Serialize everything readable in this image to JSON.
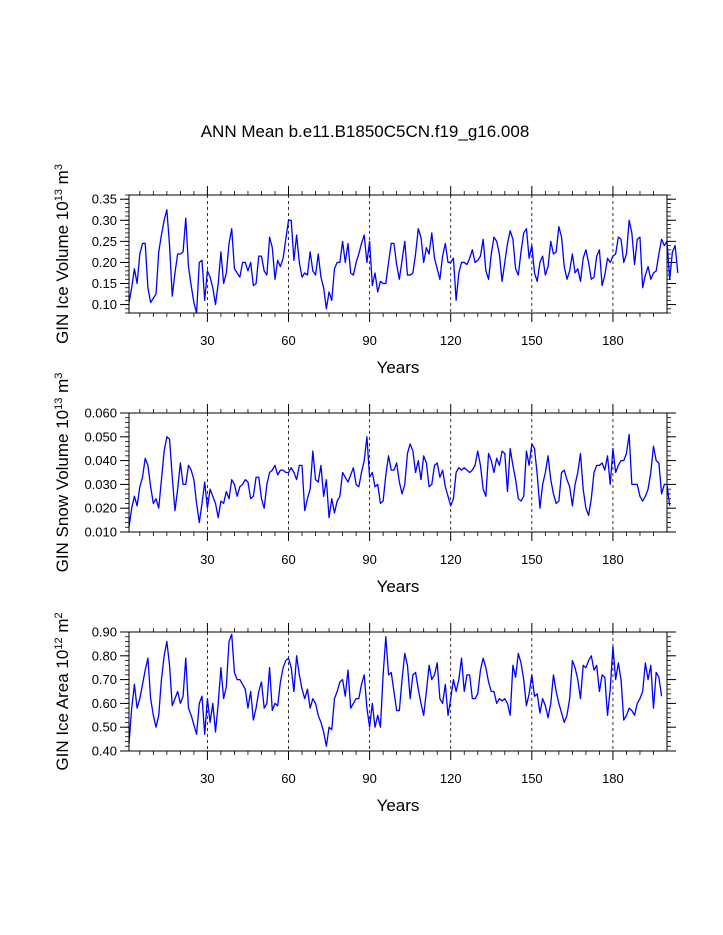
{
  "title": "ANN Mean b.e11.B1850C5CN.f19_g16.008",
  "line_color": "#0000ff",
  "chart_data": [
    {
      "type": "line",
      "ylabel": "GIN Ice Volume",
      "ylabel_exp": "13",
      "ylabel_unit": "m",
      "ylabel_unit_exp": "3",
      "xlabel": "Years",
      "xlim": [
        1,
        200
      ],
      "ylim": [
        0.08,
        0.36
      ],
      "xticks": [
        30,
        60,
        90,
        120,
        150,
        180
      ],
      "xtick_labels": [
        "30",
        "60",
        "90",
        "120",
        "150",
        "180"
      ],
      "yticks": [
        0.1,
        0.15,
        0.2,
        0.25,
        0.3,
        0.35
      ],
      "ytick_labels": [
        "0.10",
        "0.15",
        "0.20",
        "0.25",
        "0.30",
        "0.35"
      ],
      "vlines": [
        30,
        60,
        90,
        120,
        150,
        180
      ],
      "series": [
        {
          "name": "GIN Ice Volume",
          "x_start": 1,
          "values": [
            0.105,
            0.14,
            0.185,
            0.15,
            0.22,
            0.245,
            0.245,
            0.14,
            0.105,
            0.115,
            0.125,
            0.225,
            0.265,
            0.3,
            0.325,
            0.24,
            0.12,
            0.175,
            0.22,
            0.22,
            0.225,
            0.305,
            0.19,
            0.145,
            0.105,
            0.08,
            0.2,
            0.205,
            0.11,
            0.18,
            0.165,
            0.14,
            0.1,
            0.15,
            0.225,
            0.15,
            0.175,
            0.245,
            0.28,
            0.185,
            0.175,
            0.165,
            0.2,
            0.2,
            0.18,
            0.2,
            0.145,
            0.15,
            0.215,
            0.215,
            0.18,
            0.17,
            0.26,
            0.235,
            0.16,
            0.205,
            0.19,
            0.21,
            0.255,
            0.3,
            0.3,
            0.205,
            0.265,
            0.2,
            0.165,
            0.175,
            0.17,
            0.225,
            0.18,
            0.17,
            0.22,
            0.165,
            0.14,
            0.09,
            0.13,
            0.11,
            0.185,
            0.2,
            0.2,
            0.25,
            0.2,
            0.245,
            0.175,
            0.17,
            0.2,
            0.22,
            0.245,
            0.265,
            0.2,
            0.25,
            0.145,
            0.175,
            0.13,
            0.155,
            0.15,
            0.15,
            0.2,
            0.245,
            0.245,
            0.195,
            0.16,
            0.205,
            0.25,
            0.17,
            0.17,
            0.175,
            0.22,
            0.28,
            0.26,
            0.2,
            0.235,
            0.22,
            0.27,
            0.21,
            0.185,
            0.16,
            0.215,
            0.245,
            0.2,
            0.2,
            0.21,
            0.11,
            0.175,
            0.2,
            0.2,
            0.195,
            0.21,
            0.23,
            0.2,
            0.205,
            0.215,
            0.255,
            0.18,
            0.16,
            0.22,
            0.26,
            0.25,
            0.22,
            0.155,
            0.2,
            0.245,
            0.275,
            0.255,
            0.185,
            0.17,
            0.225,
            0.27,
            0.28,
            0.21,
            0.24,
            0.175,
            0.155,
            0.2,
            0.215,
            0.17,
            0.19,
            0.25,
            0.22,
            0.225,
            0.285,
            0.26,
            0.19,
            0.16,
            0.18,
            0.22,
            0.175,
            0.185,
            0.155,
            0.21,
            0.23,
            0.2,
            0.16,
            0.165,
            0.215,
            0.23,
            0.145,
            0.17,
            0.21,
            0.2,
            0.215,
            0.22,
            0.26,
            0.255,
            0.2,
            0.22,
            0.3,
            0.27,
            0.195,
            0.255,
            0.26,
            0.14,
            0.17,
            0.19,
            0.16,
            0.175,
            0.18,
            0.22,
            0.255,
            0.24,
            0.25,
            0.16,
            0.225,
            0.24,
            0.175
          ]
        }
      ]
    },
    {
      "type": "line",
      "ylabel": "GIN Snow Volume",
      "ylabel_exp": "13",
      "ylabel_unit": "m",
      "ylabel_unit_exp": "3",
      "xlabel": "Years",
      "xlim": [
        1,
        200
      ],
      "ylim": [
        0.01,
        0.06
      ],
      "xticks": [
        30,
        60,
        90,
        120,
        150,
        180
      ],
      "xtick_labels": [
        "30",
        "60",
        "90",
        "120",
        "150",
        "180"
      ],
      "yticks": [
        0.01,
        0.02,
        0.03,
        0.04,
        0.05,
        0.06
      ],
      "ytick_labels": [
        "0.010",
        "0.020",
        "0.030",
        "0.040",
        "0.050",
        "0.060"
      ],
      "vlines": [
        30,
        60,
        90,
        120,
        150,
        180
      ],
      "series": [
        {
          "name": "GIN Snow Volume",
          "x_start": 1,
          "values": [
            0.012,
            0.02,
            0.025,
            0.021,
            0.029,
            0.033,
            0.041,
            0.038,
            0.029,
            0.022,
            0.024,
            0.02,
            0.032,
            0.044,
            0.05,
            0.049,
            0.033,
            0.019,
            0.028,
            0.039,
            0.03,
            0.03,
            0.038,
            0.036,
            0.032,
            0.022,
            0.014,
            0.022,
            0.031,
            0.02,
            0.028,
            0.025,
            0.022,
            0.016,
            0.023,
            0.022,
            0.027,
            0.024,
            0.032,
            0.03,
            0.025,
            0.029,
            0.03,
            0.032,
            0.031,
            0.024,
            0.025,
            0.033,
            0.033,
            0.024,
            0.02,
            0.03,
            0.035,
            0.036,
            0.038,
            0.034,
            0.036,
            0.036,
            0.035,
            0.035,
            0.037,
            0.035,
            0.032,
            0.038,
            0.038,
            0.019,
            0.024,
            0.028,
            0.044,
            0.032,
            0.031,
            0.038,
            0.025,
            0.032,
            0.016,
            0.024,
            0.018,
            0.023,
            0.025,
            0.035,
            0.033,
            0.031,
            0.034,
            0.037,
            0.03,
            0.029,
            0.035,
            0.04,
            0.05,
            0.033,
            0.035,
            0.029,
            0.03,
            0.022,
            0.023,
            0.034,
            0.042,
            0.036,
            0.036,
            0.039,
            0.031,
            0.026,
            0.03,
            0.043,
            0.047,
            0.044,
            0.035,
            0.04,
            0.032,
            0.042,
            0.039,
            0.029,
            0.03,
            0.038,
            0.039,
            0.033,
            0.036,
            0.029,
            0.025,
            0.021,
            0.024,
            0.035,
            0.037,
            0.036,
            0.037,
            0.036,
            0.035,
            0.036,
            0.038,
            0.044,
            0.038,
            0.028,
            0.025,
            0.043,
            0.04,
            0.035,
            0.041,
            0.038,
            0.044,
            0.043,
            0.027,
            0.045,
            0.038,
            0.032,
            0.024,
            0.023,
            0.025,
            0.044,
            0.038,
            0.047,
            0.045,
            0.034,
            0.02,
            0.03,
            0.035,
            0.042,
            0.032,
            0.026,
            0.022,
            0.023,
            0.035,
            0.036,
            0.032,
            0.029,
            0.021,
            0.03,
            0.035,
            0.043,
            0.028,
            0.02,
            0.017,
            0.024,
            0.035,
            0.038,
            0.038,
            0.039,
            0.036,
            0.042,
            0.03,
            0.045,
            0.035,
            0.038,
            0.04,
            0.04,
            0.043,
            0.051,
            0.03,
            0.03,
            0.03,
            0.025,
            0.023,
            0.025,
            0.028,
            0.035,
            0.046,
            0.04,
            0.039,
            0.026,
            0.03,
            0.03,
            0.021
          ]
        }
      ]
    },
    {
      "type": "line",
      "ylabel": "GIN Ice Area",
      "ylabel_exp": "12",
      "ylabel_unit": "m",
      "ylabel_unit_exp": "2",
      "xlabel": "Years",
      "xlim": [
        1,
        200
      ],
      "ylim": [
        0.4,
        0.9
      ],
      "xticks": [
        30,
        60,
        90,
        120,
        150,
        180
      ],
      "xtick_labels": [
        "30",
        "60",
        "90",
        "120",
        "150",
        "180"
      ],
      "yticks": [
        0.4,
        0.5,
        0.6,
        0.7,
        0.8,
        0.9
      ],
      "ytick_labels": [
        "0.40",
        "0.50",
        "0.60",
        "0.70",
        "0.80",
        "0.90"
      ],
      "vlines": [
        30,
        60,
        90,
        120,
        150,
        180
      ],
      "series": [
        {
          "name": "GIN Ice Area",
          "x_start": 1,
          "values": [
            0.43,
            0.58,
            0.68,
            0.58,
            0.62,
            0.68,
            0.74,
            0.79,
            0.62,
            0.55,
            0.5,
            0.55,
            0.7,
            0.8,
            0.86,
            0.76,
            0.59,
            0.62,
            0.65,
            0.6,
            0.63,
            0.79,
            0.58,
            0.55,
            0.51,
            0.47,
            0.6,
            0.63,
            0.47,
            0.62,
            0.52,
            0.6,
            0.48,
            0.6,
            0.75,
            0.62,
            0.67,
            0.86,
            0.89,
            0.73,
            0.7,
            0.7,
            0.68,
            0.66,
            0.58,
            0.65,
            0.53,
            0.58,
            0.65,
            0.69,
            0.58,
            0.6,
            0.75,
            0.57,
            0.6,
            0.59,
            0.69,
            0.75,
            0.78,
            0.79,
            0.75,
            0.65,
            0.8,
            0.72,
            0.66,
            0.62,
            0.66,
            0.58,
            0.62,
            0.6,
            0.55,
            0.52,
            0.48,
            0.42,
            0.5,
            0.49,
            0.62,
            0.65,
            0.69,
            0.7,
            0.63,
            0.74,
            0.58,
            0.6,
            0.62,
            0.62,
            0.68,
            0.72,
            0.58,
            0.5,
            0.6,
            0.5,
            0.55,
            0.5,
            0.72,
            0.88,
            0.72,
            0.73,
            0.65,
            0.57,
            0.57,
            0.7,
            0.81,
            0.76,
            0.62,
            0.72,
            0.73,
            0.66,
            0.6,
            0.55,
            0.65,
            0.76,
            0.7,
            0.72,
            0.77,
            0.62,
            0.6,
            0.68,
            0.55,
            0.62,
            0.7,
            0.65,
            0.7,
            0.79,
            0.65,
            0.72,
            0.72,
            0.62,
            0.62,
            0.64,
            0.74,
            0.79,
            0.75,
            0.69,
            0.65,
            0.65,
            0.6,
            0.62,
            0.61,
            0.62,
            0.6,
            0.55,
            0.76,
            0.71,
            0.81,
            0.77,
            0.7,
            0.59,
            0.64,
            0.72,
            0.63,
            0.64,
            0.56,
            0.62,
            0.59,
            0.54,
            0.6,
            0.72,
            0.65,
            0.6,
            0.56,
            0.52,
            0.55,
            0.62,
            0.78,
            0.75,
            0.7,
            0.62,
            0.76,
            0.75,
            0.78,
            0.8,
            0.74,
            0.76,
            0.65,
            0.72,
            0.71,
            0.55,
            0.66,
            0.84,
            0.7,
            0.77,
            0.7,
            0.53,
            0.55,
            0.58,
            0.57,
            0.55,
            0.6,
            0.62,
            0.65,
            0.77,
            0.7,
            0.76,
            0.58,
            0.73,
            0.71,
            0.63
          ]
        }
      ]
    }
  ]
}
